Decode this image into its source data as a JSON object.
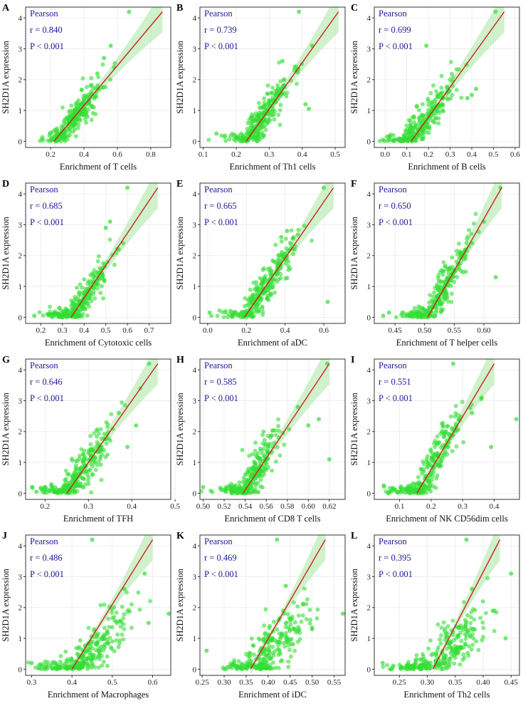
{
  "figure": {
    "point_color": "#33dd33",
    "fit_line_color": "#cc2222",
    "band_color": "#a8e6a0",
    "stats_color": "#1a1a99"
  },
  "chart_data": [
    {
      "type": "scatter",
      "label": "A",
      "xlabel": "Enrichment of T cells",
      "ylabel": "SH2D1A expression",
      "method": "Pearson",
      "r_text": "r = 0.840",
      "p_text": "P < 0.001",
      "xlim": [
        0.05,
        0.92
      ],
      "ylim": [
        -0.2,
        4.35
      ],
      "xticks": [
        0.2,
        0.4,
        0.6,
        0.8
      ],
      "xtick_labels": [
        "0.2",
        "0.4",
        "0.6",
        "0.8"
      ],
      "yticks": [
        0,
        1,
        2,
        3,
        4
      ],
      "ytick_labels": [
        "0",
        "1",
        "2",
        "3",
        "4"
      ],
      "fit_line": {
        "x": [
          0.22,
          0.87
        ],
        "y": [
          0.0,
          4.2
        ]
      },
      "points": {
        "x_center": 0.34,
        "x_spread": 0.08,
        "slope": 6.5,
        "intercept": -1.43,
        "noise": 0.3,
        "n": 260,
        "seed": 11
      },
      "extra_points": [
        [
          0.67,
          4.2
        ],
        [
          0.56,
          3.1
        ],
        [
          0.58,
          2.4
        ],
        [
          0.52,
          2.7
        ],
        [
          0.48,
          2.2
        ],
        [
          0.44,
          1.8
        ]
      ],
      "grid": true,
      "legend": "none"
    },
    {
      "type": "scatter",
      "label": "B",
      "xlabel": "Enrichment of Th1 cells",
      "ylabel": "SH2D1A expression",
      "method": "Pearson",
      "r_text": "r = 0.739",
      "p_text": "P < 0.001",
      "xlim": [
        0.09,
        0.53
      ],
      "ylim": [
        -0.2,
        4.35
      ],
      "xticks": [
        0.1,
        0.2,
        0.3,
        0.4,
        0.5
      ],
      "xtick_labels": [
        "0.1",
        "0.2",
        "0.3",
        "0.4",
        "0.5"
      ],
      "yticks": [
        0,
        1,
        2,
        3,
        4
      ],
      "ytick_labels": [
        "0",
        "1",
        "2",
        "3",
        "4"
      ],
      "fit_line": {
        "x": [
          0.23,
          0.51
        ],
        "y": [
          0.0,
          4.2
        ]
      },
      "points": {
        "x_center": 0.28,
        "x_spread": 0.045,
        "slope": 15.0,
        "intercept": -3.45,
        "noise": 0.35,
        "n": 260,
        "seed": 23
      },
      "extra_points": [
        [
          0.39,
          4.2
        ],
        [
          0.43,
          3.1
        ],
        [
          0.34,
          2.6
        ],
        [
          0.41,
          1.2
        ],
        [
          0.14,
          0.25
        ],
        [
          0.42,
          1.05
        ]
      ],
      "grid": true,
      "legend": "none"
    },
    {
      "type": "scatter",
      "label": "C",
      "xlabel": "Enrichment of B cells",
      "ylabel": "SH2D1A expression",
      "method": "Pearson",
      "r_text": "r = 0.699",
      "p_text": "P < 0.001",
      "xlim": [
        -0.05,
        0.62
      ],
      "ylim": [
        -0.2,
        4.35
      ],
      "xticks": [
        0.0,
        0.1,
        0.2,
        0.3,
        0.4,
        0.5,
        0.6
      ],
      "xtick_labels": [
        "0.0",
        "0.1",
        "0.2",
        "0.3",
        "0.4",
        "0.5",
        "0.6"
      ],
      "yticks": [
        0,
        1,
        2,
        3,
        4
      ],
      "ytick_labels": [
        "0",
        "1",
        "2",
        "3",
        "4"
      ],
      "fit_line": {
        "x": [
          0.12,
          0.55
        ],
        "y": [
          0.0,
          4.2
        ]
      },
      "points": {
        "x_center": 0.17,
        "x_spread": 0.08,
        "slope": 9.8,
        "intercept": -1.17,
        "noise": 0.38,
        "n": 260,
        "seed": 37
      },
      "extra_points": [
        [
          0.51,
          4.2
        ],
        [
          0.19,
          3.1
        ],
        [
          0.42,
          1.7
        ],
        [
          0.4,
          1.5
        ],
        [
          0.38,
          1.4
        ],
        [
          -0.01,
          0.05
        ]
      ],
      "grid": true,
      "legend": "none"
    },
    {
      "type": "scatter",
      "label": "D",
      "xlabel": "Enrichment of Cytotoxic cells",
      "ylabel": "SH2D1A expression",
      "method": "Pearson",
      "r_text": "r = 0.685",
      "p_text": "P < 0.001",
      "xlim": [
        0.13,
        0.8
      ],
      "ylim": [
        -0.2,
        4.35
      ],
      "xticks": [
        0.2,
        0.3,
        0.4,
        0.5,
        0.6,
        0.7
      ],
      "xtick_labels": [
        "0.2",
        "0.3",
        "0.4",
        "0.5",
        "0.6",
        "0.7"
      ],
      "yticks": [
        0,
        1,
        2,
        3,
        4
      ],
      "ytick_labels": [
        "0",
        "1",
        "2",
        "3",
        "4"
      ],
      "fit_line": {
        "x": [
          0.34,
          0.74
        ],
        "y": [
          0.0,
          4.2
        ]
      },
      "points": {
        "x_center": 0.37,
        "x_spread": 0.07,
        "slope": 10.5,
        "intercept": -3.57,
        "noise": 0.38,
        "n": 260,
        "seed": 41
      },
      "extra_points": [
        [
          0.6,
          4.2
        ],
        [
          0.52,
          3.1
        ],
        [
          0.58,
          2.4
        ],
        [
          0.56,
          2.2
        ],
        [
          0.17,
          0.05
        ],
        [
          0.5,
          2.9
        ]
      ],
      "grid": true,
      "legend": "none"
    },
    {
      "type": "scatter",
      "label": "E",
      "xlabel": "Enrichment of aDC",
      "ylabel": "SH2D1A expression",
      "method": "Pearson",
      "r_text": "r = 0.665",
      "p_text": "P < 0.001",
      "xlim": [
        -0.04,
        0.71
      ],
      "ylim": [
        -0.2,
        4.35
      ],
      "xticks": [
        0.0,
        0.2,
        0.4,
        0.6
      ],
      "xtick_labels": [
        "0.0",
        "0.2",
        "0.4",
        "0.6"
      ],
      "yticks": [
        0,
        1,
        2,
        3,
        4
      ],
      "ytick_labels": [
        "0",
        "1",
        "2",
        "3",
        "4"
      ],
      "fit_line": {
        "x": [
          0.19,
          0.65
        ],
        "y": [
          0.0,
          4.2
        ]
      },
      "points": {
        "x_center": 0.29,
        "x_spread": 0.09,
        "slope": 9.1,
        "intercept": -1.73,
        "noise": 0.4,
        "n": 260,
        "seed": 53
      },
      "extra_points": [
        [
          0.6,
          4.2
        ],
        [
          0.41,
          2.8
        ],
        [
          0.38,
          2.6
        ],
        [
          0.62,
          0.5
        ],
        [
          0.01,
          0.15
        ],
        [
          0.45,
          2.2
        ]
      ],
      "grid": true,
      "legend": "none"
    },
    {
      "type": "scatter",
      "label": "F",
      "xlabel": "Enrichment of T helper cells",
      "ylabel": "SH2D1A expression",
      "method": "Pearson",
      "r_text": "r = 0.650",
      "p_text": "P < 0.001",
      "xlim": [
        0.415,
        0.66
      ],
      "ylim": [
        -0.2,
        4.35
      ],
      "xticks": [
        0.45,
        0.5,
        0.55,
        0.6
      ],
      "xtick_labels": [
        "0.45",
        "0.50",
        "0.55",
        "0.60"
      ],
      "yticks": [
        0,
        1,
        2,
        3,
        4
      ],
      "ytick_labels": [
        "0",
        "1",
        "2",
        "3",
        "4"
      ],
      "fit_line": {
        "x": [
          0.505,
          0.63
        ],
        "y": [
          0.0,
          4.2
        ]
      },
      "points": {
        "x_center": 0.52,
        "x_spread": 0.025,
        "slope": 33.6,
        "intercept": -16.97,
        "noise": 0.4,
        "n": 260,
        "seed": 67
      },
      "extra_points": [
        [
          0.628,
          4.2
        ],
        [
          0.6,
          3.1
        ],
        [
          0.44,
          0.15
        ],
        [
          0.43,
          0.05
        ],
        [
          0.58,
          2.4
        ],
        [
          0.62,
          1.3
        ]
      ],
      "grid": true,
      "legend": "none"
    },
    {
      "type": "scatter",
      "label": "G",
      "xlabel": "Enrichment of TFH",
      "ylabel": "SH2D1A expression",
      "method": "Pearson",
      "r_text": "r = 0.646",
      "p_text": "P < 0.001",
      "xlim": [
        0.155,
        0.49
      ],
      "ylim": [
        -0.2,
        4.35
      ],
      "xticks": [
        0.2,
        0.3,
        0.4,
        0.5
      ],
      "xtick_labels": [
        "0.2",
        "0.3",
        "0.4",
        "0.5"
      ],
      "yticks": [
        0,
        1,
        2,
        3,
        4
      ],
      "ytick_labels": [
        "0",
        "1",
        "2",
        "3",
        "4"
      ],
      "fit_line": {
        "x": [
          0.25,
          0.46
        ],
        "y": [
          0.0,
          4.2
        ]
      },
      "points": {
        "x_center": 0.28,
        "x_spread": 0.045,
        "slope": 20.0,
        "intercept": -5.0,
        "noise": 0.42,
        "n": 260,
        "seed": 79
      },
      "extra_points": [
        [
          0.44,
          4.2
        ],
        [
          0.41,
          2.2
        ],
        [
          0.37,
          2.6
        ],
        [
          0.17,
          0.2
        ],
        [
          0.18,
          0.05
        ],
        [
          0.39,
          1.5
        ]
      ],
      "grid": true,
      "legend": "none"
    },
    {
      "type": "scatter",
      "label": "H",
      "xlabel": "Enrichment of CD8 T cells",
      "ylabel": "SH2D1A expression",
      "method": "Pearson",
      "r_text": "r = 0.585",
      "p_text": "P < 0.001",
      "xlim": [
        0.497,
        0.635
      ],
      "ylim": [
        -0.2,
        4.35
      ],
      "xticks": [
        0.5,
        0.52,
        0.54,
        0.56,
        0.58,
        0.6,
        0.62
      ],
      "xtick_labels": [
        "0.50",
        "0.52",
        "0.54",
        "0.56",
        "0.58",
        "0.60",
        "0.62"
      ],
      "yticks": [
        0,
        1,
        2,
        3,
        4
      ],
      "ytick_labels": [
        "0",
        "1",
        "2",
        "3",
        "4"
      ],
      "fit_line": {
        "x": [
          0.538,
          0.62
        ],
        "y": [
          0.0,
          4.2
        ]
      },
      "points": {
        "x_center": 0.545,
        "x_spread": 0.014,
        "slope": 51.0,
        "intercept": -27.4,
        "noise": 0.45,
        "n": 260,
        "seed": 83
      },
      "extra_points": [
        [
          0.618,
          4.2
        ],
        [
          0.62,
          1.1
        ],
        [
          0.61,
          2.4
        ],
        [
          0.5,
          0.2
        ],
        [
          0.6,
          2.2
        ],
        [
          0.59,
          2.8
        ]
      ],
      "grid": true,
      "legend": "none"
    },
    {
      "type": "scatter",
      "label": "I",
      "xlabel": "Enrichment of NK CD56dim cells",
      "ylabel": "SH2D1A expression",
      "method": "Pearson",
      "r_text": "r = 0.551",
      "p_text": "P < 0.001",
      "xlim": [
        0.02,
        0.48
      ],
      "ylim": [
        -0.2,
        4.35
      ],
      "xticks": [
        0.1,
        0.2,
        0.3,
        0.4
      ],
      "xtick_labels": [
        "0.1",
        "0.2",
        "0.3",
        "0.4"
      ],
      "yticks": [
        0,
        1,
        2,
        3,
        4
      ],
      "ytick_labels": [
        "0",
        "1",
        "2",
        "3",
        "4"
      ],
      "fit_line": {
        "x": [
          0.155,
          0.4
        ],
        "y": [
          0.0,
          4.2
        ]
      },
      "points": {
        "x_center": 0.19,
        "x_spread": 0.06,
        "slope": 17.0,
        "intercept": -2.64,
        "noise": 0.48,
        "n": 260,
        "seed": 97
      },
      "extra_points": [
        [
          0.27,
          4.2
        ],
        [
          0.47,
          2.4
        ],
        [
          0.36,
          3.1
        ],
        [
          0.05,
          0.25
        ],
        [
          0.33,
          2.6
        ],
        [
          0.39,
          1.5
        ]
      ],
      "grid": true,
      "legend": "none"
    },
    {
      "type": "scatter",
      "label": "J",
      "xlabel": "Enrichment of Macrophages",
      "ylabel": "SH2D1A expression",
      "method": "Pearson",
      "r_text": "r = 0.486",
      "p_text": "P < 0.001",
      "xlim": [
        0.285,
        0.645
      ],
      "ylim": [
        -0.2,
        4.35
      ],
      "xticks": [
        0.3,
        0.4,
        0.5,
        0.6
      ],
      "xtick_labels": [
        "0.3",
        "0.4",
        "0.5",
        "0.6"
      ],
      "yticks": [
        0,
        1,
        2,
        3,
        4
      ],
      "ytick_labels": [
        "0",
        "1",
        "2",
        "3",
        "4"
      ],
      "fit_line": {
        "x": [
          0.4,
          0.6
        ],
        "y": [
          0.0,
          4.2
        ]
      },
      "points": {
        "x_center": 0.44,
        "x_spread": 0.055,
        "slope": 13.0,
        "intercept": -5.3,
        "noise": 0.5,
        "n": 260,
        "seed": 101
      },
      "extra_points": [
        [
          0.45,
          4.2
        ],
        [
          0.64,
          1.8
        ],
        [
          0.58,
          3.1
        ],
        [
          0.3,
          0.2
        ],
        [
          0.53,
          2.6
        ],
        [
          0.59,
          1.5
        ]
      ],
      "grid": true,
      "legend": "none"
    },
    {
      "type": "scatter",
      "label": "K",
      "xlabel": "Enrichment of iDC",
      "ylabel": "SH2D1A expression",
      "method": "Pearson",
      "r_text": "r = 0.469",
      "p_text": "P < 0.001",
      "xlim": [
        0.245,
        0.575
      ],
      "ylim": [
        -0.2,
        4.35
      ],
      "xticks": [
        0.25,
        0.3,
        0.35,
        0.4,
        0.45,
        0.5,
        0.55
      ],
      "xtick_labels": [
        "0.25",
        "0.30",
        "0.35",
        "0.40",
        "0.45",
        "0.50",
        "0.55"
      ],
      "yticks": [
        0,
        1,
        2,
        3,
        4
      ],
      "ytick_labels": [
        "0",
        "1",
        "2",
        "3",
        "4"
      ],
      "fit_line": {
        "x": [
          0.36,
          0.53
        ],
        "y": [
          0.0,
          4.2
        ]
      },
      "points": {
        "x_center": 0.4,
        "x_spread": 0.045,
        "slope": 14.0,
        "intercept": -5.1,
        "noise": 0.5,
        "n": 260,
        "seed": 113
      },
      "extra_points": [
        [
          0.42,
          4.2
        ],
        [
          0.57,
          1.8
        ],
        [
          0.44,
          2.7
        ],
        [
          0.26,
          0.6
        ],
        [
          0.48,
          2.1
        ],
        [
          0.5,
          1.3
        ]
      ],
      "grid": true,
      "legend": "none"
    },
    {
      "type": "scatter",
      "label": "L",
      "xlabel": "Enrichment of Th2 cells",
      "ylabel": "SH2D1A expression",
      "method": "Pearson",
      "r_text": "r = 0.395",
      "p_text": "P < 0.001",
      "xlim": [
        0.205,
        0.465
      ],
      "ylim": [
        -0.2,
        4.35
      ],
      "xticks": [
        0.25,
        0.3,
        0.35,
        0.4,
        0.45
      ],
      "xtick_labels": [
        "0.25",
        "0.30",
        "0.35",
        "0.40",
        "0.45"
      ],
      "yticks": [
        0,
        1,
        2,
        3,
        4
      ],
      "ytick_labels": [
        "0",
        "1",
        "2",
        "3",
        "4"
      ],
      "fit_line": {
        "x": [
          0.31,
          0.43
        ],
        "y": [
          0.0,
          4.2
        ]
      },
      "points": {
        "x_center": 0.33,
        "x_spread": 0.045,
        "slope": 14.0,
        "intercept": -4.15,
        "noise": 0.55,
        "n": 260,
        "seed": 127
      },
      "extra_points": [
        [
          0.37,
          4.2
        ],
        [
          0.45,
          3.1
        ],
        [
          0.22,
          0.2
        ],
        [
          0.42,
          1.9
        ],
        [
          0.44,
          1.0
        ],
        [
          0.38,
          2.6
        ]
      ],
      "grid": true,
      "legend": "none"
    }
  ]
}
